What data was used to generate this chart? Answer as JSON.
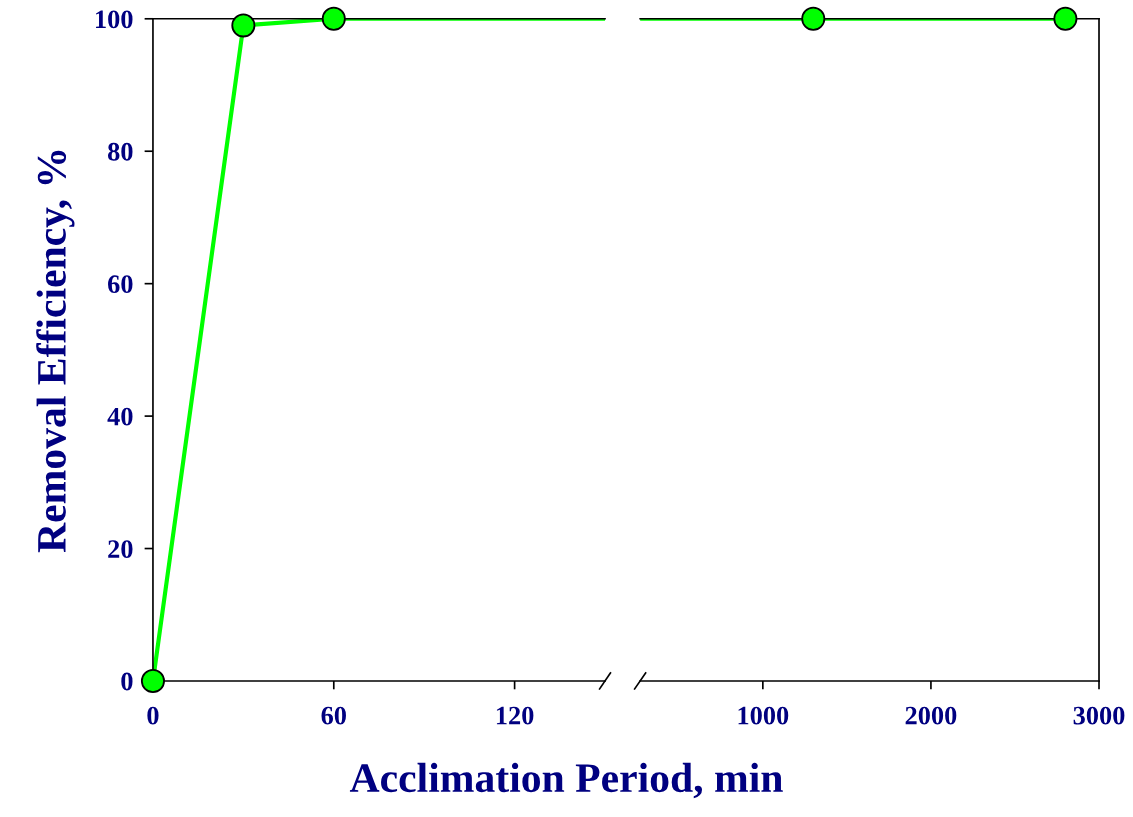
{
  "chart_data": [
    {
      "type": "line",
      "xlabel": "Acclimation Period, min",
      "ylabel": "Removal Efficiency, %",
      "xlim": [
        0,
        150
      ],
      "xticks": [
        0,
        60,
        120
      ],
      "ylim": [
        0,
        100
      ],
      "yticks": [
        0,
        20,
        40,
        60,
        80,
        100
      ],
      "marker": "circle",
      "line_style": "solid",
      "grid": false,
      "legend": false,
      "series": [
        {
          "color": "#00ff00",
          "x": [
            0,
            30,
            60
          ],
          "values": [
            0,
            99,
            100
          ]
        }
      ]
    },
    {
      "type": "line",
      "xlim": [
        270,
        3000
      ],
      "xticks": [
        1000,
        2000,
        3000
      ],
      "ylim": [
        0,
        100
      ],
      "tick_labels": "x",
      "marker": "circle",
      "line_style": "solid",
      "grid": false,
      "legend": false,
      "series": [
        {
          "color": "#00ff00",
          "x": [
            1300,
            2800
          ],
          "values": [
            100,
            100
          ]
        }
      ]
    }
  ]
}
